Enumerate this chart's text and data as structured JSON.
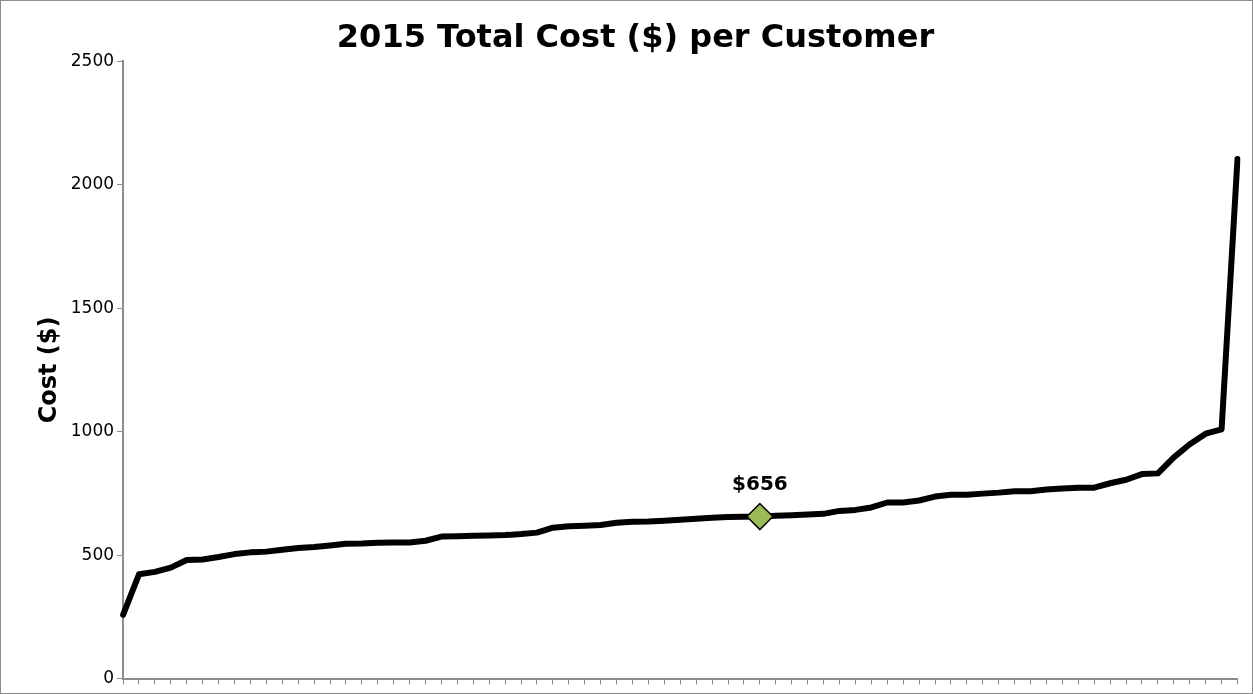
{
  "chart_data": {
    "type": "line",
    "title": "2015 Total Cost ($) per Customer",
    "ylabel": "Cost ($)",
    "categories": [
      null,
      null,
      null,
      null,
      null,
      null,
      null,
      null,
      null,
      null,
      null,
      null,
      null,
      null,
      null,
      null,
      null,
      null,
      null,
      null,
      null,
      null,
      null,
      null,
      null,
      null,
      null,
      null,
      null,
      null,
      null,
      null,
      null,
      null,
      null,
      null,
      null,
      null,
      null,
      null,
      null,
      null,
      null,
      null,
      null,
      null,
      null,
      null,
      null,
      null,
      null,
      null,
      null,
      null,
      null,
      null,
      null,
      null,
      null,
      null,
      null,
      null,
      null,
      null,
      null,
      null,
      null,
      null,
      null,
      null,
      null
    ],
    "series": [
      {
        "type": "line",
        "color": "#000000",
        "marker": "none",
        "values": [
          258,
          422,
          432,
          449,
          480,
          482,
          492,
          504,
          511,
          514,
          522,
          529,
          533,
          539,
          546,
          547,
          550,
          551,
          551,
          558,
          575,
          576,
          578,
          579,
          581,
          585,
          591,
          611,
          617,
          619,
          622,
          631,
          635,
          636,
          639,
          643,
          647,
          651,
          654,
          655,
          656,
          659,
          661,
          664,
          667,
          679,
          683,
          693,
          713,
          713,
          721,
          737,
          744,
          744,
          749,
          753,
          759,
          759,
          766,
          770,
          773,
          773,
          791,
          805,
          828,
          831,
          896,
          949,
          992,
          1009,
          2105
        ]
      },
      {
        "type": "scatter",
        "color": "#9bbb59",
        "marker": "diamond",
        "values": [
          null,
          null,
          null,
          null,
          null,
          null,
          null,
          null,
          null,
          null,
          null,
          null,
          null,
          null,
          null,
          null,
          null,
          null,
          null,
          null,
          null,
          null,
          null,
          null,
          null,
          null,
          null,
          null,
          null,
          null,
          null,
          null,
          null,
          null,
          null,
          null,
          null,
          null,
          null,
          null,
          656,
          null,
          null,
          null,
          null,
          null,
          null,
          null,
          null,
          null,
          null,
          null,
          null,
          null,
          null,
          null,
          null,
          null,
          null,
          null,
          null,
          null,
          null,
          null,
          null,
          null,
          null,
          null,
          null,
          null,
          null
        ]
      }
    ],
    "annotations": [
      "$656"
    ],
    "ylim": [
      0,
      2500
    ],
    "yticks": [
      0,
      500,
      1000,
      1500,
      2000,
      2500
    ],
    "tick_labels": "y",
    "grid": false,
    "legend": false
  }
}
